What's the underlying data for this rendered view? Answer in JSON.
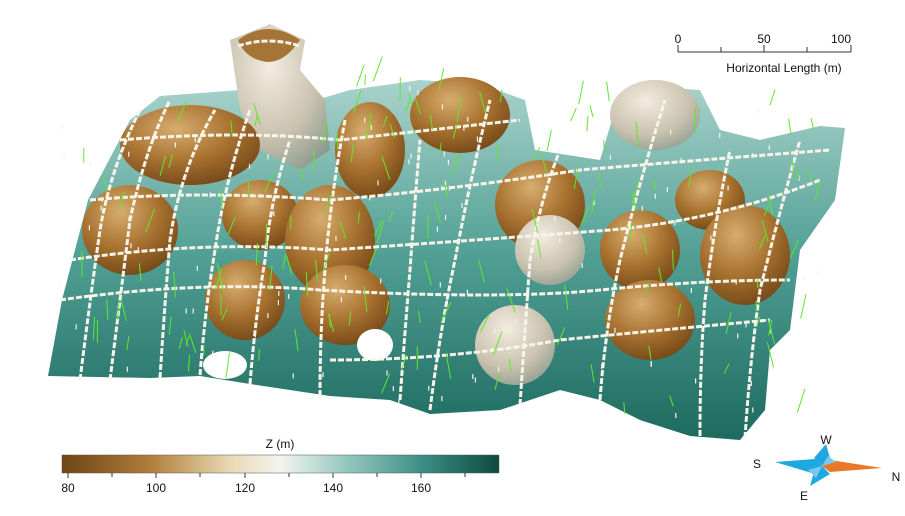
{
  "scale_bar": {
    "ticks": [
      "0",
      "50",
      "100"
    ],
    "label": "Horizontal Length (m)"
  },
  "colorbar": {
    "title": "Z (m)",
    "ticks": [
      "80",
      "100",
      "120",
      "140",
      "160"
    ],
    "colors": [
      "#6e4514",
      "#b07d3a",
      "#e8d7b2",
      "#f4f4ee",
      "#8fc4bd",
      "#3a8c82",
      "#0c4a40"
    ]
  },
  "compass": {
    "labels": {
      "north": "N",
      "south": "S",
      "east": "E",
      "west": "W"
    },
    "colors": {
      "north_arm": "#e8782a",
      "other_arms": "#1fa8e0"
    }
  }
}
